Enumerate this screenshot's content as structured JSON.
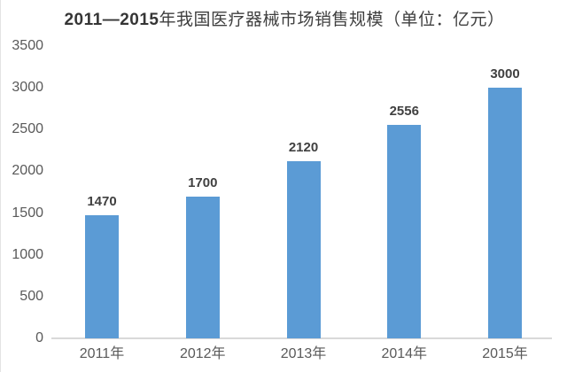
{
  "title": {
    "bold": "2011—2015",
    "regular": "年我国医疗器械市场销售规模（单位：亿元）"
  },
  "chart_data": {
    "type": "bar",
    "title": "2011—2015年我国医疗器械市场销售规模（单位：亿元）",
    "categories": [
      "2011年",
      "2012年",
      "2013年",
      "2014年",
      "2015年"
    ],
    "values": [
      1470,
      1700,
      2120,
      2556,
      3000
    ],
    "data_labels": [
      "1470",
      "1700",
      "2120",
      "2556",
      "3000"
    ],
    "xlabel": "",
    "ylabel": "",
    "ylim": [
      0,
      3500
    ],
    "yticks": [
      0,
      500,
      1000,
      1500,
      2000,
      2500,
      3000,
      3500
    ],
    "grid": false,
    "legend": false,
    "bar_color": "#5b9bd5",
    "axis_color": "#d9d9d9",
    "tick_text_color": "#595959",
    "value_label_color": "#404040"
  }
}
